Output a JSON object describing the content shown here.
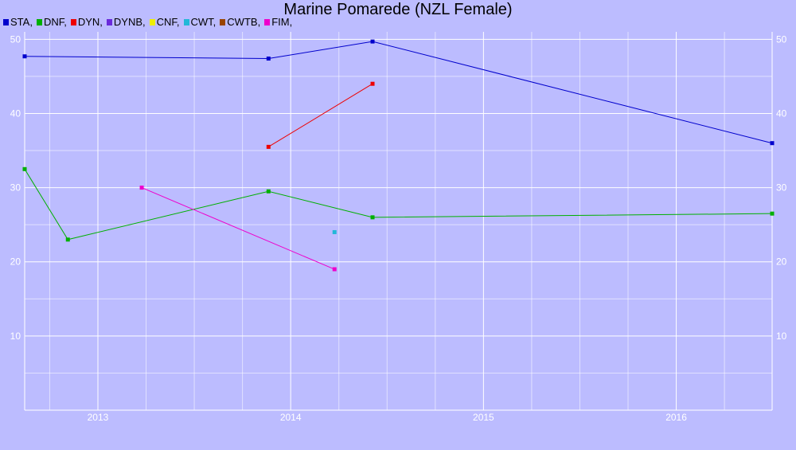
{
  "chart_data": {
    "type": "line",
    "title": "Marine Pomarede (NZL Female)",
    "xlabel": "",
    "ylabel": "",
    "x_ticks": [
      "2013",
      "2014",
      "2015",
      "2016"
    ],
    "y_ticks": [
      10,
      20,
      30,
      40,
      50
    ],
    "xlim": [
      "2012-08-15",
      "2016-07-01"
    ],
    "ylim": [
      0,
      51
    ],
    "grid": true,
    "legend_position": "top-left",
    "series": [
      {
        "name": "STA",
        "color": "#0000cc",
        "points": [
          [
            "2012-08-15",
            47.7
          ],
          [
            "2013-11-20",
            47.4
          ],
          [
            "2014-06-05",
            49.7
          ],
          [
            "2016-07-01",
            36.0
          ]
        ]
      },
      {
        "name": "DNF",
        "color": "#00b000",
        "points": [
          [
            "2012-08-15",
            32.5
          ],
          [
            "2012-11-05",
            23.0
          ],
          [
            "2013-11-20",
            29.5
          ],
          [
            "2014-06-05",
            26.0
          ],
          [
            "2016-07-01",
            26.5
          ]
        ]
      },
      {
        "name": "DYN",
        "color": "#ee0000",
        "points": [
          [
            "2013-11-20",
            35.5
          ],
          [
            "2014-06-05",
            44.0
          ]
        ]
      },
      {
        "name": "DYNB",
        "color": "#6a2adb",
        "points": []
      },
      {
        "name": "CNF",
        "color": "#eeee00",
        "points": []
      },
      {
        "name": "CWT",
        "color": "#22b8d8",
        "points": [
          [
            "2014-03-25",
            24.0
          ]
        ]
      },
      {
        "name": "CWTB",
        "color": "#994400",
        "points": []
      },
      {
        "name": "FIM",
        "color": "#ee00cc",
        "points": [
          [
            "2013-03-25",
            30.0
          ],
          [
            "2014-03-25",
            19.0
          ]
        ]
      }
    ]
  }
}
